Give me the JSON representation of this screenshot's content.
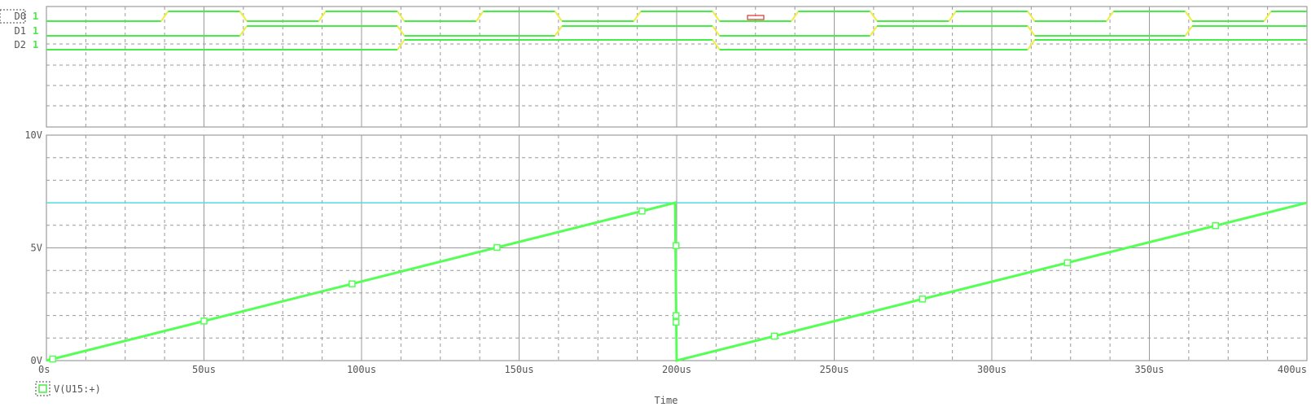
{
  "chart_data": [
    {
      "type": "line",
      "panel": "digital",
      "signals": [
        {
          "name": "D0",
          "value_label": "1",
          "transitions_us": [
            0,
            37.5,
            62.5,
            87.5,
            112.5,
            137.5,
            162.5,
            187.5,
            212.5,
            237.5,
            262.5,
            287.5,
            312.5,
            337.5,
            362.5,
            387.5
          ],
          "levels": [
            0,
            1,
            0,
            1,
            0,
            1,
            0,
            1,
            0,
            1,
            0,
            1,
            0,
            1,
            0,
            1
          ]
        },
        {
          "name": "D1",
          "value_label": "1",
          "transitions_us": [
            0,
            62.5,
            112.5,
            162.5,
            212.5,
            262.5,
            312.5,
            362.5
          ],
          "levels": [
            0,
            1,
            0,
            1,
            0,
            1,
            0,
            1
          ]
        },
        {
          "name": "D2",
          "value_label": "1",
          "transitions_us": [
            0,
            112.5,
            212.5,
            312.5
          ],
          "levels": [
            0,
            1,
            0,
            1
          ]
        }
      ]
    },
    {
      "type": "line",
      "panel": "analog",
      "xlabel": "Time",
      "x_ticks": [
        "0s",
        "50us",
        "100us",
        "150us",
        "200us",
        "250us",
        "300us",
        "350us",
        "400us"
      ],
      "y_ticks": [
        "0V",
        "5V",
        "10V"
      ],
      "xlim_us": [
        0,
        400
      ],
      "ylim_v": [
        0,
        10
      ],
      "grid": true,
      "series": [
        {
          "name": "V(U15:+)",
          "color": "#55ff55",
          "x_us": [
            0,
            199.5,
            200,
            400
          ],
          "y_v": [
            0,
            7.0,
            0,
            7.0
          ],
          "marker_x_us": [
            2,
            50,
            97,
            143,
            189,
            199.8,
            199.8,
            199.8,
            231,
            278,
            324,
            371
          ]
        }
      ],
      "reference_line": {
        "y_v": 7.0,
        "color": "#55dddd"
      }
    }
  ],
  "colors": {
    "frame": "#888888",
    "grid": "#9a9a9a",
    "signal": "#44ee44",
    "transition": "#eeee44",
    "tick_text": "#555555",
    "cursor": "#dd3333"
  }
}
